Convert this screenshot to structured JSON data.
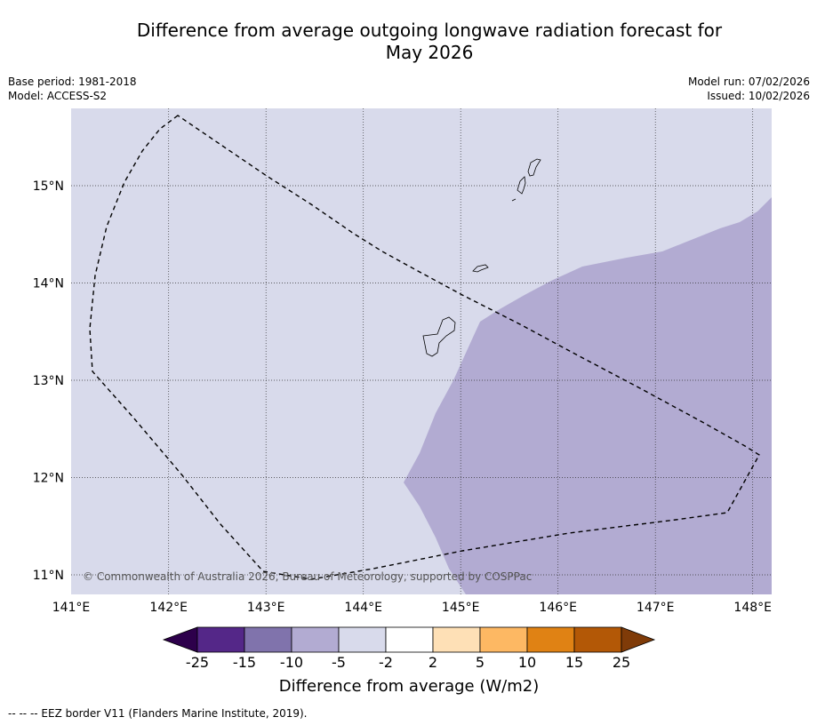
{
  "title_line1": "Difference from average outgoing longwave radiation forecast for",
  "title_line2": "May 2026",
  "base_period": "Base period: 1981-2018",
  "model": "Model: ACCESS-S2",
  "model_run": "Model run: 07/02/2026",
  "issued": "Issued: 10/02/2026",
  "copyright": "© Commonwealth of Australia 2026, Bureau of Meteorology, supported by COSPPac",
  "lon_ticks": [
    "141°E",
    "142°E",
    "143°E",
    "144°E",
    "145°E",
    "146°E",
    "147°E",
    "148°E"
  ],
  "lat_ticks": [
    "15°N",
    "14°N",
    "13°N",
    "12°N",
    "11°N"
  ],
  "colorbar": {
    "title": "Difference from average (W/m2)",
    "labels": [
      "-25",
      "-15",
      "-10",
      "-5",
      "-2",
      "2",
      "5",
      "10",
      "15",
      "25"
    ],
    "colors": [
      "#2d004b",
      "#542788",
      "#8073ac",
      "#b2abd2",
      "#d8daeb",
      "#ffffff",
      "#fee0b6",
      "#fdb863",
      "#e08214",
      "#b35806",
      "#7f3b08"
    ]
  },
  "map_colors": {
    "background_class": "#d8daeb",
    "anomaly_class": "#b2abd2"
  },
  "footnote": "--  --  -- EEZ border V11 (Flanders Marine Institute, 2019)."
}
